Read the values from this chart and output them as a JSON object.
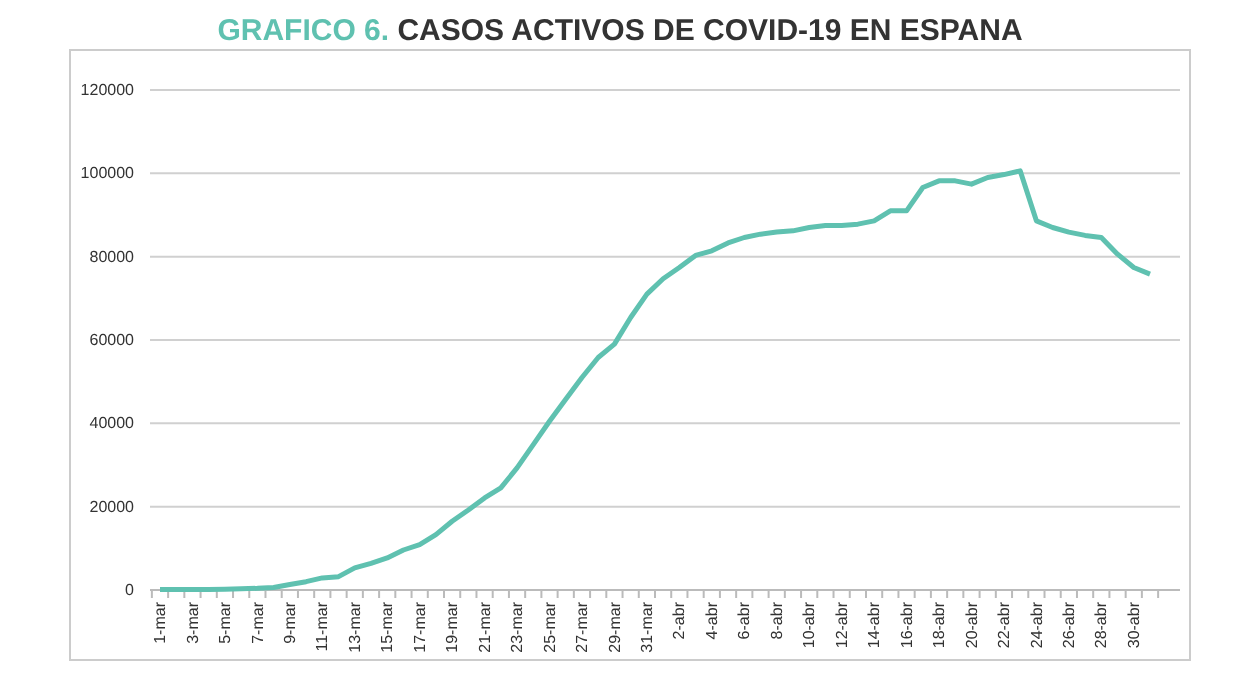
{
  "chart_data": {
    "type": "line",
    "title": "GRAFICO 6.",
    "subtitle": "CASOS ACTIVOS DE COVID-19 EN ESPANA",
    "categories": [
      "1-mar",
      null,
      "3-mar",
      null,
      "5-mar",
      null,
      "7-mar",
      null,
      "9-mar",
      null,
      "11-mar",
      null,
      "13-mar",
      null,
      "15-mar",
      null,
      "17-mar",
      null,
      "19-mar",
      null,
      "21-mar",
      null,
      "23-mar",
      null,
      "25-mar",
      null,
      "27-mar",
      null,
      "29-mar",
      null,
      "31-mar",
      null,
      "2-abr",
      null,
      "4-abr",
      null,
      "6-abr",
      null,
      "8-abr",
      null,
      "10-abr",
      null,
      "12-abr",
      null,
      "14-abr",
      null,
      "16-abr",
      null,
      "18-abr",
      null,
      "20-abr",
      null,
      "22-abr",
      null,
      "24-abr",
      null,
      "26-abr",
      null,
      "28-abr",
      null,
      "30-abr",
      null
    ],
    "series": [
      {
        "color": "#5fc1b0",
        "values": [
          100,
          100,
          100,
          100,
          200,
          300,
          400,
          600,
          1300,
          2000,
          2900,
          3200,
          5300,
          6400,
          7700,
          9600,
          10900,
          13300,
          16500,
          19200,
          22100,
          24500,
          29300,
          34900,
          40500,
          45800,
          51000,
          55800,
          59000,
          65400,
          71000,
          74700,
          77400,
          80300,
          81400,
          83300,
          84600,
          85400,
          85900,
          86200,
          87000,
          87500,
          87500,
          87800,
          88600,
          91000,
          91000,
          96600,
          98200,
          98200,
          97400,
          99000,
          99700,
          100600,
          88600,
          87000,
          85900,
          85100,
          84600,
          80600,
          77400,
          75800
        ]
      }
    ],
    "ylim": [
      0,
      120000
    ],
    "yticks": [
      0,
      20000,
      40000,
      60000,
      80000,
      100000,
      120000
    ],
    "grid": "y",
    "marker": "none",
    "line_style": "solid"
  }
}
